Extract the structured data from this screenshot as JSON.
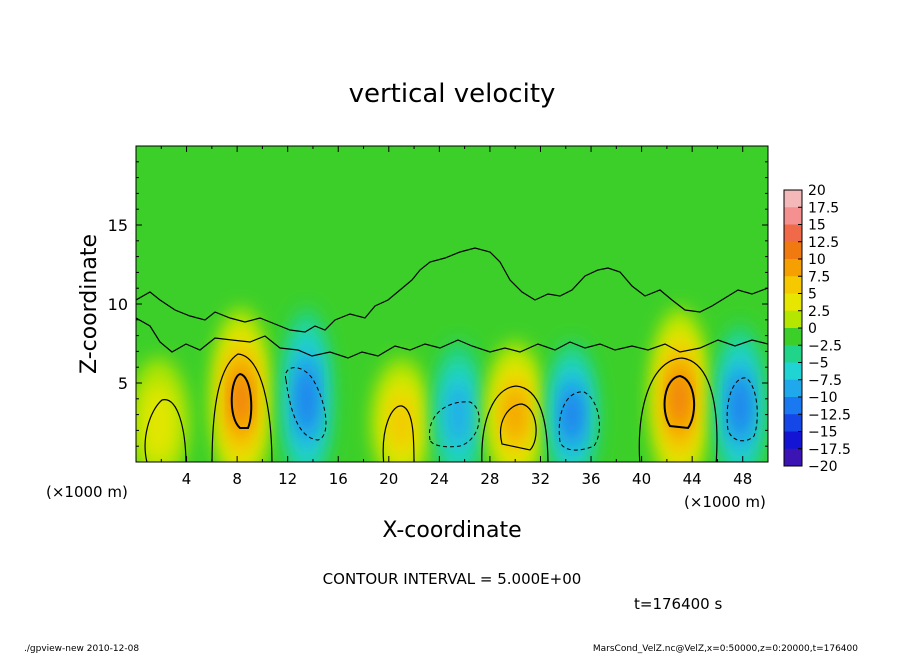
{
  "chart_data": {
    "type": "heatmap",
    "title": "vertical velocity",
    "xlabel": "X-coordinate",
    "ylabel": "Z-coordinate",
    "x_unit_left": "(×1000 m)",
    "x_unit_right": "(×1000 m)",
    "xlim": [
      0,
      50
    ],
    "ylim": [
      0,
      20
    ],
    "x_ticks": [
      "4",
      "8",
      "12",
      "16",
      "20",
      "24",
      "28",
      "32",
      "36",
      "40",
      "44",
      "48"
    ],
    "y_ticks": [
      "5",
      "10",
      "15"
    ],
    "colorbar": {
      "labels": [
        "20",
        "17.5",
        "15",
        "12.5",
        "10",
        "7.5",
        "5",
        "2.5",
        "0",
        "−2.5",
        "−5",
        "−7.5",
        "−10",
        "−12.5",
        "−15",
        "−17.5",
        "−20"
      ],
      "colors": [
        "#f5b8b8",
        "#f59090",
        "#f06a4a",
        "#f07a10",
        "#f5a000",
        "#f5c800",
        "#e6e600",
        "#b4e600",
        "#3ccf2a",
        "#20d48a",
        "#20d4d4",
        "#20a8ec",
        "#1a78f0",
        "#1446e8",
        "#1414d4",
        "#3c14b4",
        "#6a1aa8"
      ]
    },
    "contour_interval_text": "CONTOUR INTERVAL = 5.000E+00",
    "time_text": "t=176400 s",
    "features": [
      {
        "x": 8.3,
        "z": 4.0,
        "w": 7.0,
        "sign": "up"
      },
      {
        "x": 13.5,
        "z": 4.0,
        "w": -5.0,
        "sign": "down"
      },
      {
        "x": 21.0,
        "z": 2.5,
        "w": 4.0,
        "sign": "up"
      },
      {
        "x": 25.5,
        "z": 3.0,
        "w": -3.5,
        "sign": "down"
      },
      {
        "x": 30.0,
        "z": 3.0,
        "w": 5.0,
        "sign": "up"
      },
      {
        "x": 34.5,
        "z": 3.0,
        "w": -5.5,
        "sign": "down"
      },
      {
        "x": 43.0,
        "z": 4.0,
        "w": 6.5,
        "sign": "up"
      },
      {
        "x": 47.8,
        "z": 3.5,
        "w": -5.5,
        "sign": "down"
      },
      {
        "x": 1.8,
        "z": 2.5,
        "w": 2.5,
        "sign": "up"
      }
    ]
  },
  "footer": {
    "left": "./gpview-new  2010-12-08",
    "right": "MarsCond_VelZ.nc@VelZ,x=0:50000,z=0:20000,t=176400"
  }
}
